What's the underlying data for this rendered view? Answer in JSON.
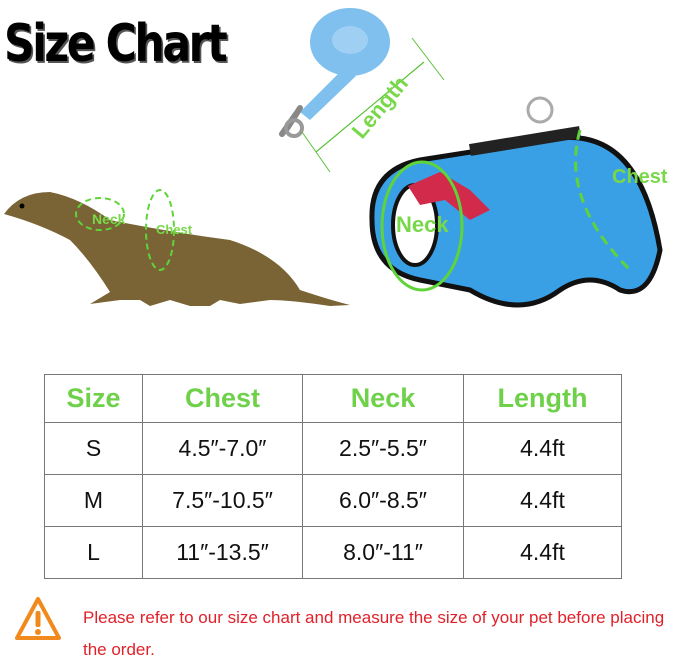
{
  "title": "Size Chart",
  "diagram_labels": {
    "length": "Length",
    "neck": "Neck",
    "chest": "Chest"
  },
  "table": {
    "headers": [
      "Size",
      "Chest",
      "Neck",
      "Length"
    ],
    "rows": [
      [
        "S",
        "4.5″-7.0″",
        "2.5″-5.5″",
        "4.4ft"
      ],
      [
        "M",
        "7.5″-10.5″",
        "6.0″-8.5″",
        "4.4ft"
      ],
      [
        "L",
        "11″-13.5″",
        "8.0″-11″",
        "4.4ft"
      ]
    ]
  },
  "note": {
    "icon": "warning-icon",
    "text": "Please refer to our size chart and measure the size of your pet before placing the order."
  },
  "colors": {
    "accent_green": "#6fd14a",
    "warning_red": "#e0212a",
    "harness_blue": "#3aa0e6"
  }
}
